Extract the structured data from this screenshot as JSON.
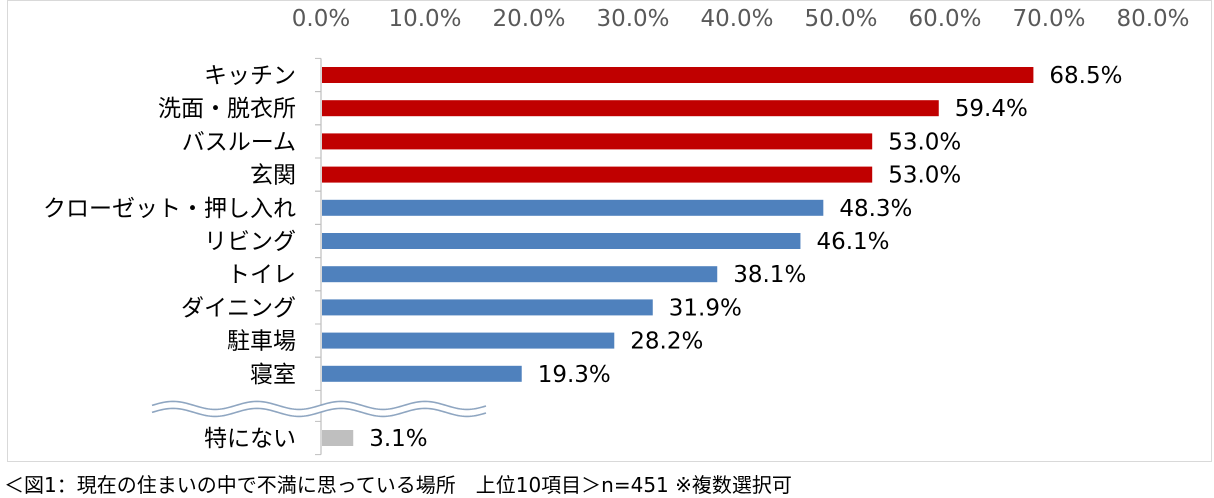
{
  "chart_data": {
    "type": "bar",
    "orientation": "horizontal",
    "categories": [
      "キッチン",
      "洗面・脱衣所",
      "バスルーム",
      "玄関",
      "クローゼット・押し入れ",
      "リビング",
      "トイレ",
      "ダイニング",
      "駐車場",
      "寝室",
      "特にない"
    ],
    "values": [
      68.5,
      59.4,
      53.0,
      53.0,
      48.3,
      46.1,
      38.1,
      31.9,
      28.2,
      19.3,
      3.1
    ],
    "value_labels": [
      "68.5%",
      "59.4%",
      "53.0%",
      "53.0%",
      "48.3%",
      "46.1%",
      "38.1%",
      "31.9%",
      "28.2%",
      "19.3%",
      "3.1%"
    ],
    "bar_colors": [
      "#C00000",
      "#C00000",
      "#C00000",
      "#C00000",
      "#4F81BD",
      "#4F81BD",
      "#4F81BD",
      "#4F81BD",
      "#4F81BD",
      "#4F81BD",
      "#BFBFBF"
    ],
    "xlim": [
      0,
      80
    ],
    "xticks": [
      0,
      10,
      20,
      30,
      40,
      50,
      60,
      70,
      80
    ],
    "xtick_labels": [
      "0.0%",
      "10.0%",
      "20.0%",
      "30.0%",
      "40.0%",
      "50.0%",
      "60.0%",
      "70.0%",
      "80.0%"
    ],
    "xaxis_position": "top",
    "grid": false,
    "legend": false,
    "axis_break_before": "特にない",
    "caption": "＜図1：現在の住まいの中で不満に思っている場所　上位10項目＞n=451 ※複数選択可"
  }
}
